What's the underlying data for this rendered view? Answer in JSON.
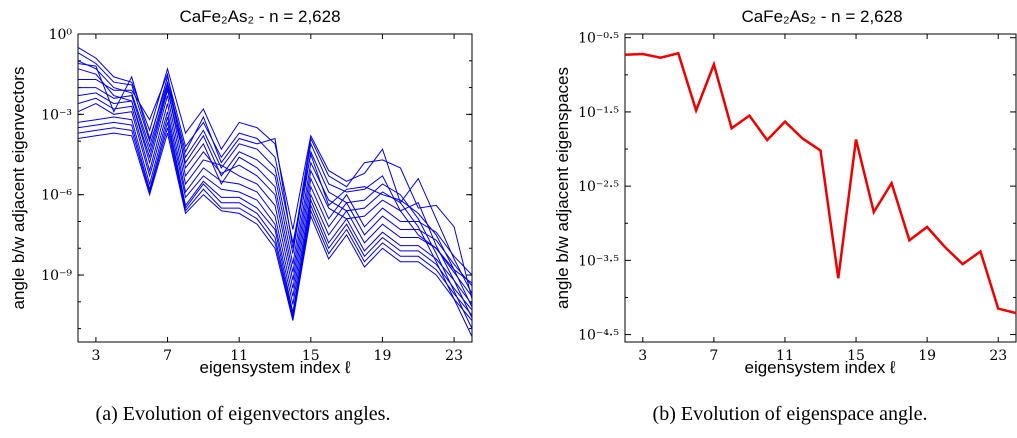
{
  "chart_data": [
    {
      "type": "line",
      "title": "CaFe₂As₂ - n = 2,628",
      "xlabel": "eigensystem index ℓ",
      "ylabel": "angle b/w adjacent eigenvectors",
      "caption": "(a)  Evolution of eigenvectors angles.",
      "xlim": [
        2,
        24
      ],
      "ylim_log10": [
        -11.5,
        0
      ],
      "log_scale_y": true,
      "x_ticks": [
        3,
        7,
        11,
        15,
        19,
        23
      ],
      "y_ticks": [
        {
          "exp": 0,
          "label": "10⁰"
        },
        {
          "exp": -3,
          "label": "10⁻³"
        },
        {
          "exp": -6,
          "label": "10⁻⁶"
        },
        {
          "exp": -9,
          "label": "10⁻⁹"
        }
      ],
      "line_color": "#0000ee",
      "x": [
        2,
        3,
        4,
        5,
        6,
        7,
        8,
        9,
        10,
        11,
        12,
        13,
        14,
        15,
        16,
        17,
        18,
        19,
        20,
        21,
        22,
        23,
        24
      ],
      "series": [
        {
          "log10_values": [
            -0.5,
            -0.9,
            -1.6,
            -1.8,
            -3.6,
            -1.3,
            -3.7,
            -2.8,
            -4.3,
            -3.3,
            -3.5,
            -4.1,
            -7.3,
            -3.8,
            -5.1,
            -5.5,
            -5.2,
            -4.3,
            -6.3,
            -5.4,
            -6.9,
            -8.4,
            -9.7
          ]
        },
        {
          "log10_values": [
            -0.7,
            -1.1,
            -1.8,
            -1.9,
            -4.0,
            -1.6,
            -4.2,
            -3.3,
            -4.6,
            -3.7,
            -3.9,
            -4.6,
            -7.8,
            -4.5,
            -6.4,
            -5.8,
            -5.7,
            -6.0,
            -6.2,
            -6.7,
            -7.5,
            -8.8,
            -10.2
          ]
        },
        {
          "log10_values": [
            -1.0,
            -1.3,
            -2.0,
            -2.2,
            -4.2,
            -1.9,
            -4.6,
            -3.6,
            -5.0,
            -4.1,
            -4.3,
            -5.0,
            -8.2,
            -4.1,
            -5.6,
            -5.9,
            -5.8,
            -5.3,
            -6.6,
            -6.3,
            -7.9,
            -9.2,
            -10.6
          ]
        },
        {
          "log10_values": [
            -1.3,
            -1.5,
            -2.3,
            -2.5,
            -4.6,
            -2.1,
            -4.8,
            -3.8,
            -5.3,
            -4.4,
            -4.7,
            -5.3,
            -8.6,
            -4.4,
            -5.9,
            -6.3,
            -6.2,
            -5.6,
            -6.0,
            -6.9,
            -8.2,
            -9.6,
            -11.0
          ]
        },
        {
          "log10_values": [
            -1.7,
            -1.7,
            -2.1,
            -2.1,
            -3.2,
            -1.5,
            -5.0,
            -4.1,
            -5.6,
            -4.6,
            -5.0,
            -5.7,
            -8.9,
            -4.8,
            -6.2,
            -6.6,
            -6.5,
            -5.9,
            -6.3,
            -7.2,
            -8.5,
            -9.9,
            -11.3
          ]
        },
        {
          "log10_values": [
            -2.0,
            -2.0,
            -2.4,
            -2.3,
            -4.4,
            -2.0,
            -5.3,
            -4.4,
            -5.2,
            -4.9,
            -5.3,
            -6.0,
            -9.2,
            -5.1,
            -6.5,
            -6.9,
            -6.8,
            -6.2,
            -6.6,
            -7.5,
            -8.0,
            -8.8,
            -9.3
          ]
        },
        {
          "log10_values": [
            -2.3,
            -2.2,
            -2.6,
            -2.5,
            -4.8,
            -2.3,
            -5.6,
            -4.7,
            -4.9,
            -5.3,
            -5.6,
            -6.4,
            -9.5,
            -5.4,
            -6.9,
            -6.0,
            -7.2,
            -6.5,
            -7.0,
            -7.0,
            -7.4,
            -8.3,
            -9.0
          ]
        },
        {
          "log10_values": [
            -2.6,
            -2.4,
            -2.8,
            -2.7,
            -5.1,
            -2.6,
            -5.9,
            -5.0,
            -5.5,
            -5.6,
            -5.9,
            -6.8,
            -9.8,
            -5.7,
            -7.2,
            -6.3,
            -7.5,
            -6.8,
            -7.3,
            -7.3,
            -7.7,
            -8.6,
            -9.4
          ]
        },
        {
          "log10_values": [
            -2.9,
            -2.6,
            -3.0,
            -2.9,
            -5.3,
            -2.9,
            -6.1,
            -5.3,
            -5.8,
            -5.9,
            -6.2,
            -7.1,
            -10.1,
            -6.0,
            -7.5,
            -6.6,
            -7.8,
            -7.1,
            -7.6,
            -7.6,
            -8.0,
            -8.9,
            -9.8
          ]
        },
        {
          "log10_values": [
            -3.3,
            -3.2,
            -3.1,
            -3.2,
            -5.6,
            -3.1,
            -6.4,
            -5.5,
            -6.1,
            -6.1,
            -6.5,
            -7.3,
            -10.4,
            -6.2,
            -7.8,
            -6.9,
            -8.1,
            -7.4,
            -7.9,
            -7.9,
            -8.4,
            -9.2,
            -10.1
          ]
        },
        {
          "log10_values": [
            -3.5,
            -3.4,
            -3.3,
            -3.4,
            -5.8,
            -3.3,
            -6.5,
            -5.6,
            -6.3,
            -6.3,
            -6.7,
            -7.6,
            -10.5,
            -6.4,
            -8.0,
            -7.1,
            -8.3,
            -7.6,
            -8.1,
            -8.1,
            -8.6,
            -9.5,
            -10.3
          ]
        },
        {
          "log10_values": [
            -3.7,
            -3.6,
            -3.5,
            -3.6,
            -5.9,
            -3.5,
            -6.6,
            -5.8,
            -6.5,
            -6.5,
            -6.9,
            -7.8,
            -10.6,
            -6.6,
            -8.2,
            -7.3,
            -8.5,
            -7.8,
            -8.3,
            -8.3,
            -8.8,
            -9.7,
            -10.5
          ]
        },
        {
          "log10_values": [
            -3.9,
            -3.8,
            -3.7,
            -3.8,
            -6.0,
            -3.7,
            -6.7,
            -6.0,
            -6.6,
            -6.7,
            -7.1,
            -8.0,
            -10.7,
            -6.8,
            -8.4,
            -7.5,
            -8.7,
            -8.0,
            -8.5,
            -8.5,
            -9.0,
            -9.9,
            -10.7
          ]
        },
        {
          "log10_values": [
            -1.1,
            -1.2,
            -2.9,
            -1.6,
            -3.9,
            -1.8,
            -4.4,
            -3.1,
            -4.8,
            -3.9,
            -4.1,
            -3.9,
            -8.0,
            -3.9,
            -5.3,
            -5.7,
            -4.8,
            -4.7,
            -5.0,
            -6.5,
            -6.4,
            -7.2,
            -9.9
          ]
        }
      ]
    },
    {
      "type": "line",
      "title": "CaFe₂As₂ - n = 2,628",
      "xlabel": "eigensystem index ℓ",
      "ylabel": "angle b/w adjacent eigenspaces",
      "caption": "(b)  Evolution of eigenspace angle.",
      "xlim": [
        2,
        24
      ],
      "ylim_log10": [
        -4.6,
        -0.45
      ],
      "log_scale_y": true,
      "x_ticks": [
        3,
        7,
        11,
        15,
        19,
        23
      ],
      "y_ticks": [
        {
          "exp": -0.5,
          "label": "10⁻⁰·⁵"
        },
        {
          "exp": -1.5,
          "label": "10⁻¹·⁵"
        },
        {
          "exp": -2.5,
          "label": "10⁻²·⁵"
        },
        {
          "exp": -3.5,
          "label": "10⁻³·⁵"
        },
        {
          "exp": -4.5,
          "label": "10⁻⁴·⁵"
        }
      ],
      "line_color": "#ee0000",
      "x": [
        2,
        3,
        4,
        5,
        6,
        7,
        8,
        9,
        10,
        11,
        12,
        13,
        14,
        15,
        16,
        17,
        18,
        19,
        20,
        21,
        22,
        23,
        24
      ],
      "series": [
        {
          "log10_values": [
            -0.73,
            -0.72,
            -0.77,
            -0.71,
            -1.48,
            -0.86,
            -1.72,
            -1.55,
            -1.88,
            -1.63,
            -1.86,
            -2.02,
            -3.74,
            -1.87,
            -2.85,
            -2.46,
            -3.23,
            -3.05,
            -3.32,
            -3.55,
            -3.38,
            -4.15,
            -4.21
          ]
        }
      ]
    }
  ]
}
